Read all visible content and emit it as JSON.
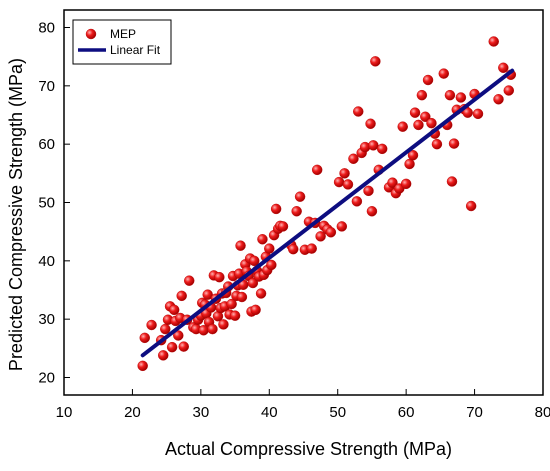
{
  "chart_data": {
    "type": "scatter",
    "title": "",
    "xlabel": "Actual Compressive Strength (MPa)",
    "ylabel": "Predicted Compressive Strength (MPa)",
    "xlim": [
      10,
      80
    ],
    "ylim": [
      17,
      83
    ],
    "xticks": [
      10,
      20,
      30,
      40,
      50,
      60,
      70,
      80
    ],
    "yticks": [
      20,
      30,
      40,
      50,
      60,
      70,
      80
    ],
    "grid": false,
    "legend_position": "top-left",
    "colors": {
      "points": "#ee1c1c",
      "fit": "#0d0d80"
    },
    "series": [
      {
        "name": "MEP",
        "kind": "points",
        "points": [
          [
            21.5,
            22.0
          ],
          [
            21.8,
            26.8
          ],
          [
            22.8,
            29.0
          ],
          [
            24.2,
            26.4
          ],
          [
            24.5,
            23.8
          ],
          [
            24.8,
            28.3
          ],
          [
            25.2,
            29.9
          ],
          [
            25.5,
            32.2
          ],
          [
            25.8,
            25.2
          ],
          [
            26.1,
            31.6
          ],
          [
            26.3,
            29.7
          ],
          [
            26.7,
            27.2
          ],
          [
            27.0,
            30.2
          ],
          [
            27.2,
            34.0
          ],
          [
            27.5,
            25.3
          ],
          [
            28.0,
            29.9
          ],
          [
            28.3,
            36.6
          ],
          [
            28.9,
            28.6
          ],
          [
            29.3,
            28.3
          ],
          [
            29.6,
            29.9
          ],
          [
            30.0,
            30.6
          ],
          [
            30.2,
            32.8
          ],
          [
            30.4,
            28.1
          ],
          [
            30.6,
            32.5
          ],
          [
            30.8,
            31.0
          ],
          [
            31.0,
            34.2
          ],
          [
            31.2,
            29.5
          ],
          [
            31.5,
            32.0
          ],
          [
            31.7,
            28.3
          ],
          [
            31.9,
            37.5
          ],
          [
            32.2,
            33.5
          ],
          [
            32.5,
            30.5
          ],
          [
            32.7,
            37.2
          ],
          [
            32.9,
            31.9
          ],
          [
            33.1,
            34.4
          ],
          [
            33.3,
            29.1
          ],
          [
            33.5,
            32.2
          ],
          [
            33.7,
            34.5
          ],
          [
            34.0,
            35.6
          ],
          [
            34.2,
            30.8
          ],
          [
            34.5,
            32.6
          ],
          [
            34.7,
            37.4
          ],
          [
            35.0,
            30.6
          ],
          [
            35.2,
            34.0
          ],
          [
            35.4,
            35.8
          ],
          [
            35.6,
            37.8
          ],
          [
            35.8,
            42.6
          ],
          [
            36.0,
            33.8
          ],
          [
            36.2,
            35.9
          ],
          [
            36.5,
            39.4
          ],
          [
            36.7,
            38.2
          ],
          [
            37.0,
            37.4
          ],
          [
            37.2,
            40.4
          ],
          [
            37.4,
            31.3
          ],
          [
            37.6,
            36.2
          ],
          [
            37.8,
            40.0
          ],
          [
            38.0,
            31.6
          ],
          [
            38.2,
            38.3
          ],
          [
            38.5,
            37.3
          ],
          [
            38.8,
            34.4
          ],
          [
            39.0,
            43.7
          ],
          [
            39.2,
            37.6
          ],
          [
            39.5,
            40.7
          ],
          [
            39.7,
            38.4
          ],
          [
            40.0,
            42.1
          ],
          [
            40.3,
            39.3
          ],
          [
            40.7,
            44.4
          ],
          [
            41.0,
            48.9
          ],
          [
            41.3,
            45.5
          ],
          [
            41.6,
            46.0
          ],
          [
            42.0,
            45.9
          ],
          [
            43.2,
            42.7
          ],
          [
            43.5,
            42.0
          ],
          [
            44.0,
            48.5
          ],
          [
            44.5,
            51.0
          ],
          [
            45.2,
            41.9
          ],
          [
            45.8,
            46.7
          ],
          [
            46.2,
            42.1
          ],
          [
            46.7,
            46.5
          ],
          [
            47.0,
            55.6
          ],
          [
            47.5,
            44.2
          ],
          [
            48.0,
            46.0
          ],
          [
            48.5,
            45.4
          ],
          [
            49.0,
            44.9
          ],
          [
            50.2,
            53.5
          ],
          [
            50.6,
            45.9
          ],
          [
            51.0,
            55.0
          ],
          [
            51.5,
            53.1
          ],
          [
            52.3,
            57.5
          ],
          [
            52.8,
            50.2
          ],
          [
            53.0,
            65.6
          ],
          [
            53.5,
            58.5
          ],
          [
            54.0,
            59.5
          ],
          [
            54.5,
            52.0
          ],
          [
            54.8,
            63.5
          ],
          [
            55.0,
            48.5
          ],
          [
            55.2,
            59.8
          ],
          [
            55.5,
            74.2
          ],
          [
            56.0,
            55.6
          ],
          [
            56.5,
            59.2
          ],
          [
            57.5,
            52.6
          ],
          [
            58.0,
            53.4
          ],
          [
            58.5,
            51.6
          ],
          [
            59.0,
            52.4
          ],
          [
            59.5,
            63.0
          ],
          [
            60.0,
            53.2
          ],
          [
            60.5,
            56.6
          ],
          [
            61.0,
            58.1
          ],
          [
            61.3,
            65.4
          ],
          [
            61.8,
            63.3
          ],
          [
            62.3,
            68.4
          ],
          [
            62.8,
            64.7
          ],
          [
            63.2,
            71.0
          ],
          [
            63.7,
            63.6
          ],
          [
            64.2,
            61.8
          ],
          [
            64.5,
            60.0
          ],
          [
            65.5,
            72.1
          ],
          [
            66.0,
            63.3
          ],
          [
            66.4,
            68.4
          ],
          [
            66.7,
            53.6
          ],
          [
            67.0,
            60.1
          ],
          [
            67.4,
            65.9
          ],
          [
            68.0,
            68.0
          ],
          [
            68.5,
            66.0
          ],
          [
            69.0,
            65.4
          ],
          [
            69.5,
            49.4
          ],
          [
            70.0,
            68.6
          ],
          [
            70.5,
            65.2
          ],
          [
            72.8,
            77.6
          ],
          [
            73.5,
            67.7
          ],
          [
            74.2,
            73.1
          ],
          [
            75.0,
            69.2
          ],
          [
            75.3,
            71.9
          ]
        ]
      },
      {
        "name": "Linear Fit",
        "kind": "line",
        "points": [
          [
            21.5,
            23.8
          ],
          [
            75.5,
            72.6
          ]
        ]
      }
    ]
  }
}
